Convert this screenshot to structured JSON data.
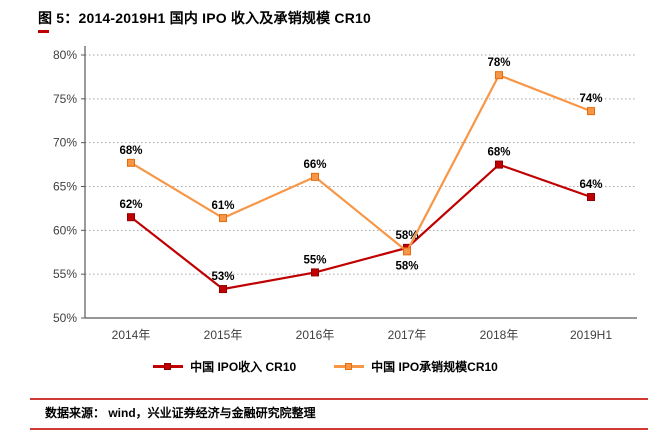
{
  "page": {
    "source_label": "数据来源：  wind，兴业证券经济与金融研究院整理"
  },
  "colors": {
    "accent_red": "#c00000",
    "rule_red": "#d03a32",
    "axis_gray": "#595959",
    "grid_gray": "#a6a6a6"
  },
  "chart_data": {
    "type": "line",
    "title": "图 5：2014-2019H1 国内 IPO 收入及承销规模 CR10",
    "categories": [
      "2014年",
      "2015年",
      "2016年",
      "2017年",
      "2018年",
      "2019H1"
    ],
    "series": [
      {
        "name": "中国 IPO收入 CR10",
        "color": "#c00000",
        "border": "#900000",
        "values": [
          61.5,
          53.3,
          55.2,
          58.0,
          67.5,
          63.8
        ],
        "labels": [
          "62%",
          "53%",
          "55%",
          "58%",
          "68%",
          "64%"
        ],
        "label_pos": [
          "top",
          "top",
          "top",
          "top",
          "top",
          "top"
        ]
      },
      {
        "name": "中国 IPO承销规模CR10",
        "color": "#f79646",
        "border": "#e46c0a",
        "values": [
          67.7,
          61.4,
          66.1,
          57.6,
          77.7,
          73.6
        ],
        "labels": [
          "68%",
          "61%",
          "66%",
          "58%",
          "78%",
          "74%"
        ],
        "label_pos": [
          "top",
          "top",
          "top",
          "bottom",
          "top",
          "top"
        ]
      }
    ],
    "xlabel": "",
    "ylabel": "",
    "ylim": [
      50,
      80
    ],
    "ytick_step": 5,
    "ytick_labels": [
      "50%",
      "55%",
      "60%",
      "65%",
      "70%",
      "75%",
      "80%"
    ],
    "grid": "horizontal-dotted",
    "legend_position": "bottom"
  }
}
